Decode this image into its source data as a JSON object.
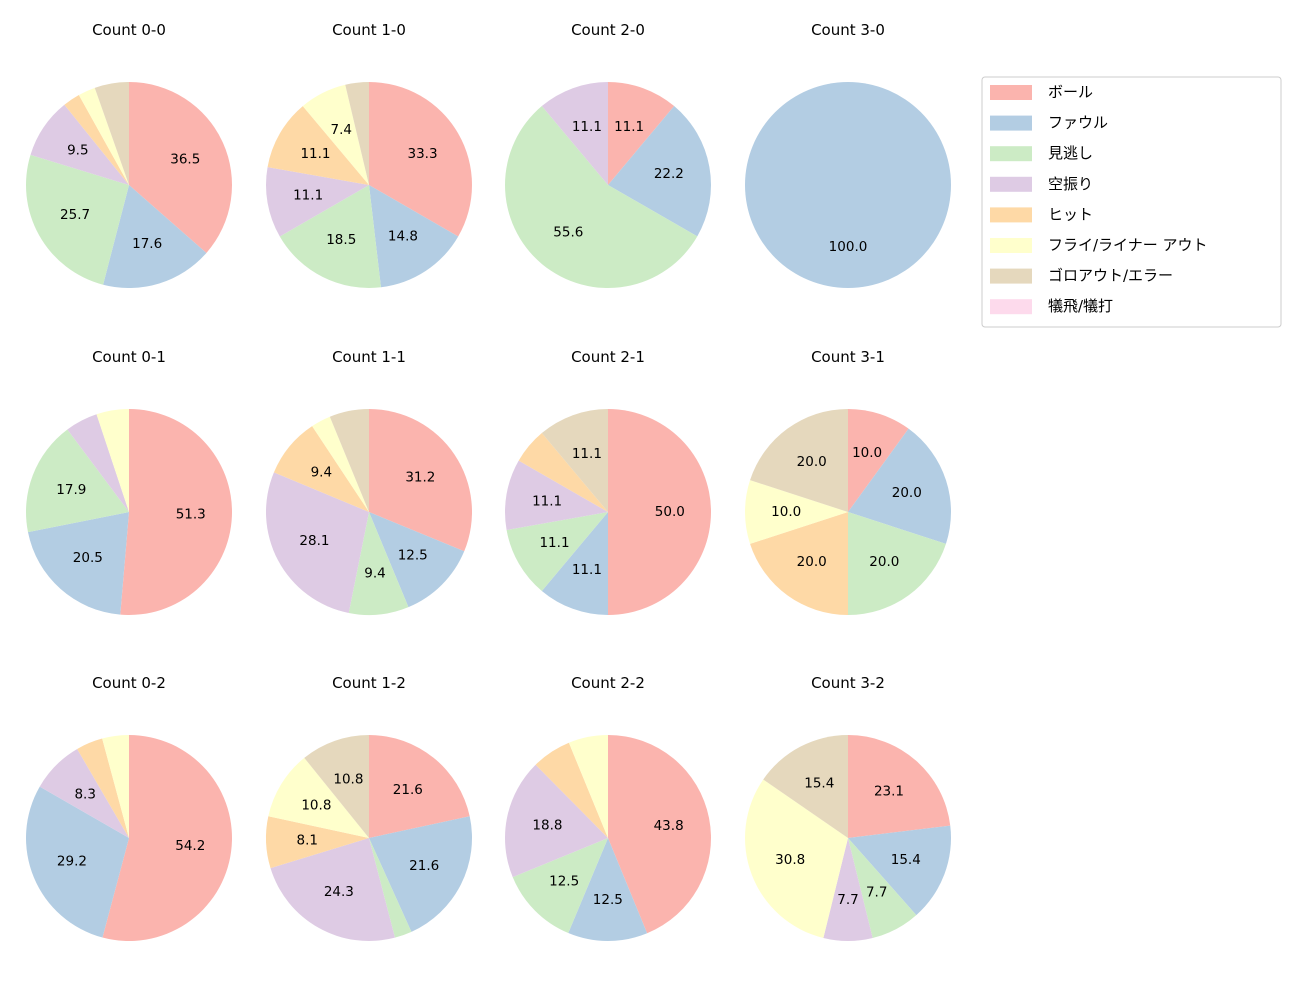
{
  "chart_data": {
    "type": "pie",
    "categories": [
      "ボール",
      "ファウル",
      "見逃し",
      "空振り",
      "ヒット",
      "フライ/ライナー アウト",
      "ゴロアウト/エラー",
      "犠飛/犠打"
    ],
    "colors": [
      "#fbb4ae",
      "#b3cde3",
      "#ccebc5",
      "#decbe4",
      "#fed9a6",
      "#ffffcc",
      "#e5d8bd",
      "#fddaec"
    ],
    "legend_position": "right",
    "start_angle": 90,
    "direction": "clockwise",
    "charts": [
      {
        "title": "Count 0-0",
        "values": [
          36.5,
          17.6,
          25.7,
          9.5,
          2.7,
          2.7,
          5.4,
          0
        ]
      },
      {
        "title": "Count 1-0",
        "values": [
          33.3,
          14.8,
          18.5,
          11.1,
          11.1,
          7.4,
          3.7,
          0
        ]
      },
      {
        "title": "Count 2-0",
        "values": [
          11.1,
          22.2,
          55.6,
          11.1,
          0,
          0,
          0,
          0
        ]
      },
      {
        "title": "Count 3-0",
        "values": [
          0,
          100.0,
          0,
          0,
          0,
          0,
          0,
          0
        ]
      },
      {
        "title": "Count 0-1",
        "values": [
          51.3,
          20.5,
          17.9,
          5.1,
          0,
          5.1,
          0,
          0
        ]
      },
      {
        "title": "Count 1-1",
        "values": [
          31.2,
          12.5,
          9.4,
          28.1,
          9.4,
          3.1,
          6.2,
          0
        ]
      },
      {
        "title": "Count 2-1",
        "values": [
          50.0,
          11.1,
          11.1,
          11.1,
          5.6,
          0,
          11.1,
          0
        ]
      },
      {
        "title": "Count 3-1",
        "values": [
          10.0,
          20.0,
          20.0,
          0,
          20.0,
          10.0,
          20.0,
          0
        ]
      },
      {
        "title": "Count 0-2",
        "values": [
          54.2,
          29.2,
          0,
          8.3,
          4.2,
          4.2,
          0,
          0
        ]
      },
      {
        "title": "Count 1-2",
        "values": [
          21.6,
          21.6,
          2.7,
          24.3,
          8.1,
          10.8,
          10.8,
          0
        ]
      },
      {
        "title": "Count 2-2",
        "values": [
          43.8,
          12.5,
          12.5,
          18.8,
          6.2,
          6.2,
          0,
          0
        ]
      },
      {
        "title": "Count 3-2",
        "values": [
          23.1,
          15.4,
          7.7,
          7.7,
          0,
          30.8,
          15.4,
          0
        ]
      }
    ]
  }
}
